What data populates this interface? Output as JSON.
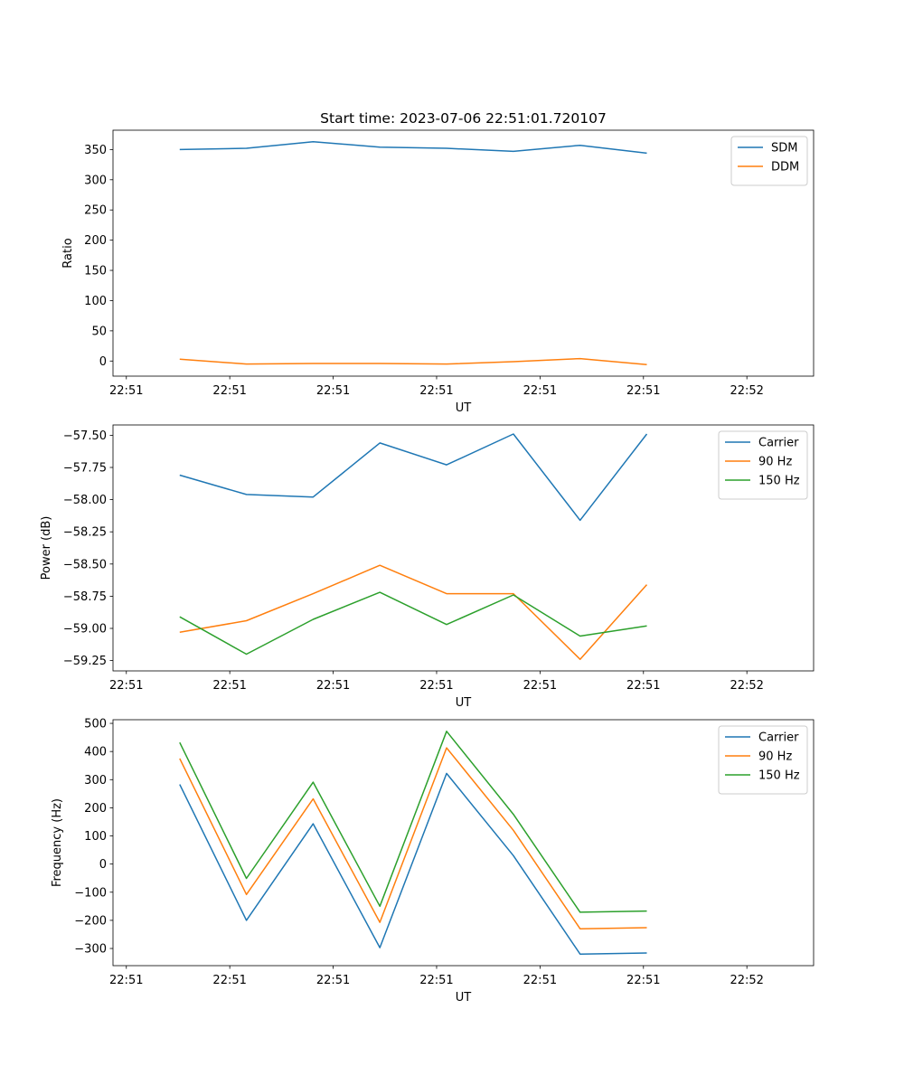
{
  "chart_data": [
    {
      "type": "line",
      "title": "Start time: 2023-07-06 22:51:01.720107",
      "xlabel": "UT",
      "ylabel": "Ratio",
      "xlim": [
        0,
        10.5
      ],
      "ylim": [
        -25,
        382
      ],
      "x": [
        1,
        2,
        3,
        4,
        5,
        6,
        7,
        8
      ],
      "xticks": [
        0.2,
        1.75,
        3.3,
        4.85,
        6.4,
        7.95,
        9.5
      ],
      "xtick_labels": [
        "22:51",
        "22:51",
        "22:51",
        "22:51",
        "22:51",
        "22:51",
        "22:52"
      ],
      "yticks": [
        0,
        50,
        100,
        150,
        200,
        250,
        300,
        350
      ],
      "legend_position": "upper-right",
      "series": [
        {
          "name": "SDM",
          "color": "#1f77b4",
          "values": [
            350,
            352,
            363,
            354,
            352,
            347,
            357,
            344
          ]
        },
        {
          "name": "DDM",
          "color": "#ff7f0e",
          "values": [
            3,
            -5,
            -4,
            -4,
            -5,
            -1,
            4,
            -6
          ]
        }
      ]
    },
    {
      "type": "line",
      "title": "",
      "xlabel": "UT",
      "ylabel": "Power (dB)",
      "xlim": [
        0,
        10.5
      ],
      "ylim": [
        -59.33,
        -57.42
      ],
      "x": [
        1,
        2,
        3,
        4,
        5,
        6,
        7,
        8
      ],
      "xticks": [
        0.2,
        1.75,
        3.3,
        4.85,
        6.4,
        7.95,
        9.5
      ],
      "xtick_labels": [
        "22:51",
        "22:51",
        "22:51",
        "22:51",
        "22:51",
        "22:51",
        "22:52"
      ],
      "yticks": [
        -59.25,
        -59.0,
        -58.75,
        -58.5,
        -58.25,
        -58.0,
        -57.75,
        -57.5
      ],
      "ytick_labels": [
        "−59.25",
        "−59.00",
        "−58.75",
        "−58.50",
        "−58.25",
        "−58.00",
        "−57.75",
        "−57.50"
      ],
      "legend_position": "upper-right",
      "series": [
        {
          "name": "Carrier",
          "color": "#1f77b4",
          "values": [
            -57.81,
            -57.96,
            -57.98,
            -57.56,
            -57.73,
            -57.49,
            -58.16,
            -57.49
          ]
        },
        {
          "name": "90 Hz",
          "color": "#ff7f0e",
          "values": [
            -59.03,
            -58.94,
            -58.73,
            -58.51,
            -58.73,
            -58.73,
            -59.24,
            -58.66
          ]
        },
        {
          "name": "150 Hz",
          "color": "#2ca02c",
          "values": [
            -58.91,
            -59.2,
            -58.93,
            -58.72,
            -58.97,
            -58.74,
            -59.06,
            -58.98
          ]
        }
      ]
    },
    {
      "type": "line",
      "title": "",
      "xlabel": "UT",
      "ylabel": "Frequency (Hz)",
      "xlim": [
        0,
        10.5
      ],
      "ylim": [
        -361,
        513
      ],
      "x": [
        1,
        2,
        3,
        4,
        5,
        6,
        7,
        8
      ],
      "xticks": [
        0.2,
        1.75,
        3.3,
        4.85,
        6.4,
        7.95,
        9.5
      ],
      "xtick_labels": [
        "22:51",
        "22:51",
        "22:51",
        "22:51",
        "22:51",
        "22:51",
        "22:52"
      ],
      "yticks": [
        -300,
        -200,
        -100,
        0,
        100,
        200,
        300,
        400,
        500
      ],
      "ytick_labels": [
        "−300",
        "−200",
        "−100",
        "0",
        "100",
        "200",
        "300",
        "400",
        "500"
      ],
      "legend_position": "upper-right",
      "series": [
        {
          "name": "Carrier",
          "color": "#1f77b4",
          "values": [
            283,
            -200,
            143,
            -297,
            322,
            30,
            -320,
            -316
          ]
        },
        {
          "name": "90 Hz",
          "color": "#ff7f0e",
          "values": [
            375,
            -108,
            232,
            -207,
            413,
            120,
            -230,
            -226
          ]
        },
        {
          "name": "150 Hz",
          "color": "#2ca02c",
          "values": [
            432,
            -51,
            291,
            -150,
            472,
            177,
            -171,
            -167
          ]
        }
      ]
    }
  ]
}
